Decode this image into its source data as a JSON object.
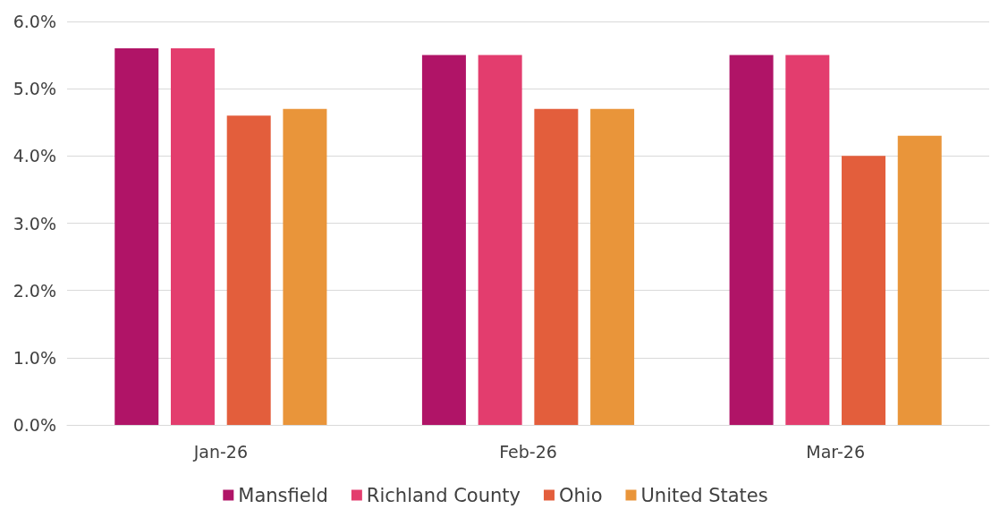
{
  "chart_data": {
    "type": "bar",
    "categories": [
      "Jan-26",
      "Feb-26",
      "Mar-26"
    ],
    "series": [
      {
        "name": "Mansfield",
        "color": "#b01467",
        "values": [
          5.6,
          5.5,
          5.5
        ]
      },
      {
        "name": "Richland County",
        "color": "#e33d6e",
        "values": [
          5.6,
          5.5,
          5.5
        ]
      },
      {
        "name": "Ohio",
        "color": "#e35e3c",
        "values": [
          4.6,
          4.7,
          4.0
        ]
      },
      {
        "name": "United States",
        "color": "#e9953a",
        "values": [
          4.7,
          4.7,
          4.3
        ]
      }
    ],
    "ylim": [
      0,
      6
    ],
    "yticks": [
      {
        "value": 0,
        "label": "0.0%"
      },
      {
        "value": 1,
        "label": "1.0%"
      },
      {
        "value": 2,
        "label": "2.0%"
      },
      {
        "value": 3,
        "label": "3.0%"
      },
      {
        "value": 4,
        "label": "4.0%"
      },
      {
        "value": 5,
        "label": "5.0%"
      },
      {
        "value": 6,
        "label": "6.0%"
      }
    ],
    "grid": "y",
    "legend": "bottom"
  }
}
